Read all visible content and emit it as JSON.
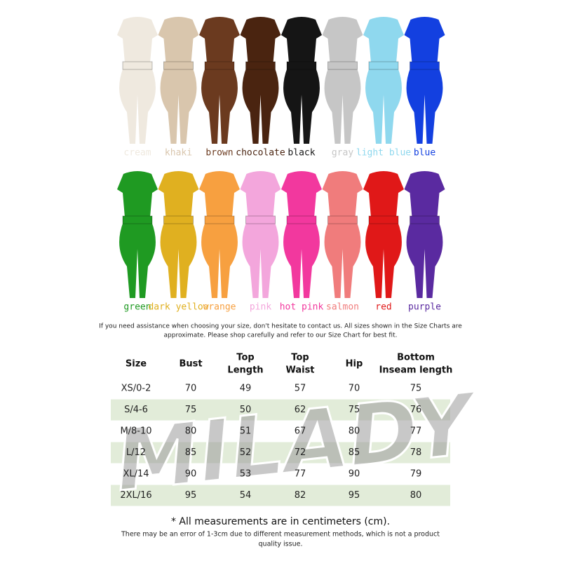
{
  "colors": [
    {
      "label": "cream",
      "color": "#efe9df"
    },
    {
      "label": "khaki",
      "color": "#d9c6ad"
    },
    {
      "label": "brown",
      "color": "#6b3a1f"
    },
    {
      "label": "chocolate",
      "color": "#4a2410"
    },
    {
      "label": "black",
      "color": "#151515"
    },
    {
      "label": "gray",
      "color": "#c6c6c6"
    },
    {
      "label": "light blue",
      "color": "#8fd8ee"
    },
    {
      "label": "blue",
      "color": "#1340e0"
    },
    {
      "label": "green",
      "color": "#1f9a22"
    },
    {
      "label": "dark yellow",
      "color": "#e0b020"
    },
    {
      "label": "orange",
      "color": "#f7a040"
    },
    {
      "label": "pink",
      "color": "#f3a6dc"
    },
    {
      "label": "hot pink",
      "color": "#f2389e"
    },
    {
      "label": "salmon",
      "color": "#f07c7c"
    },
    {
      "label": "red",
      "color": "#e01818"
    },
    {
      "label": "purple",
      "color": "#5a2aa0"
    }
  ],
  "intro": [
    "If you need assistance when choosing your size, don't hesitate to contact us. All sizes shown in the Size Charts are",
    "approximate. Please shop carefully and refer to our Size Chart for best fit."
  ],
  "table": {
    "headers": [
      [
        "Size"
      ],
      [
        "Bust"
      ],
      [
        "Top",
        "Length"
      ],
      [
        "Top",
        "Waist"
      ],
      [
        "Hip"
      ],
      [
        "Bottom",
        "Inseam length"
      ]
    ],
    "rows": [
      [
        "XS/0-2",
        70,
        49,
        57,
        70,
        75
      ],
      [
        "S/4-6",
        75,
        50,
        62,
        75,
        76
      ],
      [
        "M/8-10",
        80,
        51,
        67,
        80,
        77
      ],
      [
        "L/12",
        85,
        52,
        72,
        85,
        78
      ],
      [
        "XL/14",
        90,
        53,
        77,
        90,
        79
      ],
      [
        "2XL/16",
        95,
        54,
        82,
        95,
        80
      ]
    ]
  },
  "watermark": "MILADY",
  "note": "* All measurements are in centimeters (cm).",
  "footer": [
    "There may be an error of 1-3cm due to different measurement methods, which is not a product",
    "quality issue."
  ]
}
